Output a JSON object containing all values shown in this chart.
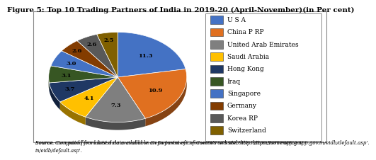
{
  "title": "Figure 5: Top 10 Trading Partners of India in 2019-20 (April-November)(in Per cent)",
  "labels": [
    "U S A",
    "China P RP",
    "United Arab Emirates",
    "Saudi Arabia",
    "Hong Kong",
    "Iraq",
    "Singapore",
    "Germany",
    "Korea RP",
    "Switzerland"
  ],
  "values": [
    11.3,
    10.9,
    7.3,
    4.1,
    3.7,
    3.1,
    3.0,
    2.6,
    2.6,
    2.5
  ],
  "colors": [
    "#4472C4",
    "#E07020",
    "#7F7F7F",
    "#FFC000",
    "#1F3864",
    "#375623",
    "#4472C4",
    "#833C00",
    "#595959",
    "#806000"
  ],
  "legend_colors": [
    "#4472C4",
    "#E07020",
    "#7F7F7F",
    "#FFC000",
    "#1F3864",
    "#375623",
    "#4472C4",
    "#833C00",
    "#595959",
    "#806000"
  ],
  "source_text": "Source: Computed from latest data available on Department of Commerce's website. 'https://commerce-app.gov.in/eidb/default.asp'.",
  "background_color": "#FFFFFF",
  "title_fontsize": 7.5,
  "legend_fontsize": 6.5
}
